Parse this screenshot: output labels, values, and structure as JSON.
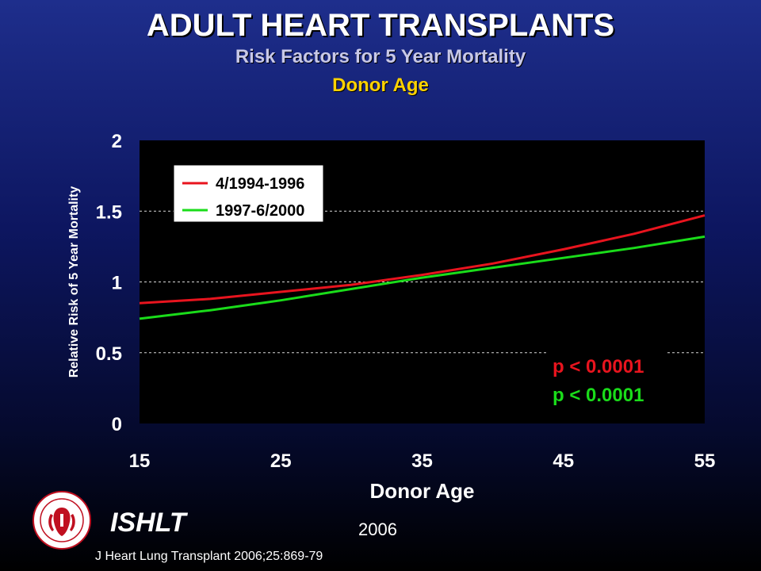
{
  "header": {
    "title": "ADULT HEART TRANSPLANTS",
    "subtitle": "Risk Factors for 5 Year Mortality",
    "subtitle2": "Donor Age"
  },
  "footer": {
    "org": "ISHLT",
    "year": "2006",
    "citation": "J Heart Lung Transplant 2006;25:869-79"
  },
  "colors": {
    "series_red": "#e8141e",
    "series_green": "#1adc1a",
    "plot_bg": "#000000",
    "gridline": "#ffffff"
  },
  "chart_data": {
    "type": "line",
    "xlabel": "Donor Age",
    "ylabel": "Relative Risk of 5 Year Mortality",
    "xlim": [
      15,
      55
    ],
    "ylim": [
      0,
      2
    ],
    "xticks": [
      "15",
      "25",
      "35",
      "45",
      "55"
    ],
    "yticks": [
      "0",
      "0.5",
      "1",
      "1.5",
      "2"
    ],
    "grid": "horizontal dashed at 0.5, 1, 1.5",
    "legend_position": "top-left",
    "series": [
      {
        "name": "4/1994-1996",
        "color": "#e8141e",
        "x": [
          15,
          20,
          25,
          30,
          35,
          40,
          45,
          50,
          55
        ],
        "y": [
          0.85,
          0.88,
          0.93,
          0.98,
          1.05,
          1.13,
          1.23,
          1.34,
          1.47
        ]
      },
      {
        "name": "1997-6/2000",
        "color": "#1adc1a",
        "x": [
          15,
          20,
          25,
          30,
          35,
          40,
          45,
          50,
          55
        ],
        "y": [
          0.74,
          0.8,
          0.87,
          0.95,
          1.03,
          1.1,
          1.17,
          1.24,
          1.32
        ]
      }
    ],
    "annotations": [
      {
        "text": "p < 0.0001",
        "color": "#e8141e"
      },
      {
        "text": "p < 0.0001",
        "color": "#1adc1a"
      }
    ]
  }
}
